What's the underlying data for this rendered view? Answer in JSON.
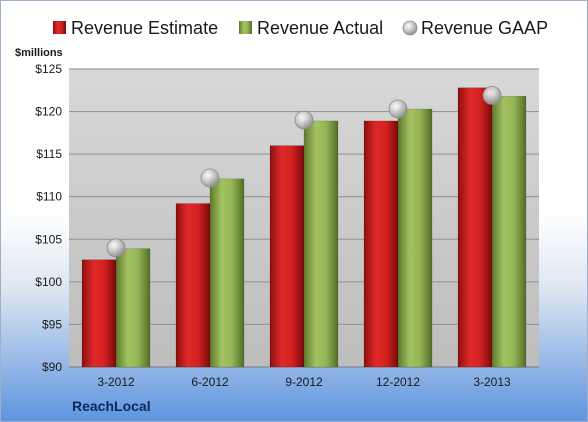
{
  "chart_data": {
    "type": "bar",
    "company": "ReachLocal",
    "unit_label": "$millions",
    "categories": [
      "3-2012",
      "6-2012",
      "9-2012",
      "12-2012",
      "3-2013"
    ],
    "series": [
      {
        "name": "Revenue Estimate",
        "kind": "bar",
        "color": "#cc1f1f",
        "values": [
          102.6,
          109.2,
          116.0,
          118.9,
          122.8
        ]
      },
      {
        "name": "Revenue Actual",
        "kind": "bar",
        "color": "#8aaa4c",
        "values": [
          103.9,
          112.1,
          118.9,
          120.3,
          121.8
        ]
      },
      {
        "name": "Revenue GAAP",
        "kind": "marker",
        "color": "#c0c0c0",
        "values": [
          104.0,
          112.2,
          119.0,
          120.3,
          121.9
        ]
      }
    ],
    "ylim": [
      90,
      125
    ],
    "yticks": [
      90,
      95,
      100,
      105,
      110,
      115,
      120,
      125
    ],
    "ytick_labels": [
      "$90",
      "$95",
      "$100",
      "$105",
      "$110",
      "$115",
      "$120",
      "$125"
    ],
    "grid": true,
    "legend_position": "top"
  }
}
